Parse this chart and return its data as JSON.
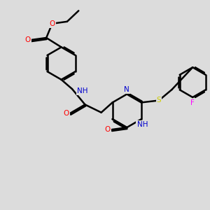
{
  "bg_color": "#dcdcdc",
  "bond_color": "#000000",
  "bond_width": 1.8,
  "atom_colors": {
    "O": "#ff0000",
    "N": "#0000cd",
    "S": "#cccc00",
    "F": "#ff00ff",
    "C": "#000000",
    "H": "#006400"
  },
  "font_size": 7.5,
  "fig_width": 3.0,
  "fig_height": 3.0,
  "dpi": 100
}
